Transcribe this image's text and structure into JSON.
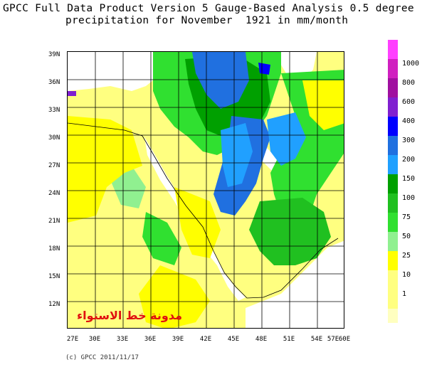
{
  "title_line1": "GPCC Full Data Product Version 5 Gauge-Based Analysis 0.5 degree",
  "title_line2": "precipitation for November  1921 in mm/month",
  "lat_labels": [
    "39N",
    "36N",
    "33N",
    "30N",
    "27N",
    "24N",
    "21N",
    "18N",
    "15N",
    "12N"
  ],
  "lon_labels": [
    "27E",
    "30E",
    "33E",
    "36E",
    "39E",
    "42E",
    "45E",
    "48E",
    "51E",
    "54E",
    "57E",
    "60E"
  ],
  "legend": {
    "labels": [
      "1000",
      "800",
      "600",
      "400",
      "300",
      "200",
      "150",
      "100",
      "75",
      "50",
      "25",
      "10",
      "1"
    ],
    "colors": [
      "#ff40ff",
      "#d020c0",
      "#a010a0",
      "#8020d0",
      "#0000ff",
      "#2070e0",
      "#20a0ff",
      "#00a000",
      "#20c020",
      "#30e030",
      "#90f090",
      "#ffff00",
      "#ffff80"
    ]
  },
  "watermark": "مدونة خط الاستواء",
  "copyright": "(c) GPCC 2011/11/17"
}
